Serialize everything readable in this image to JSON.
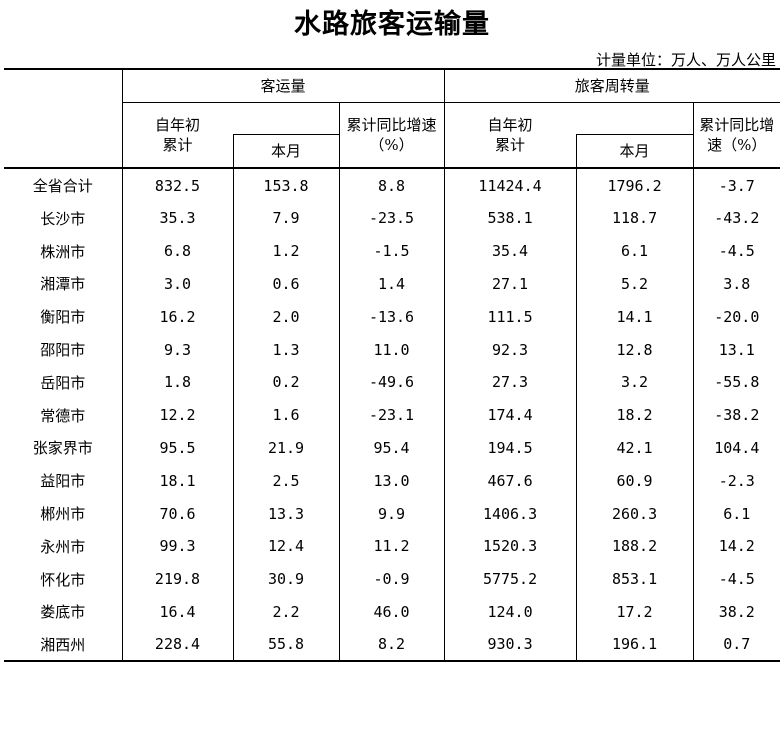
{
  "title": "水路旅客运输量",
  "unit": "计量单位：万人、万人公里",
  "headers": {
    "group_passenger": "客运量",
    "group_turnover": "旅客周转量",
    "ytd_line1": "自年初",
    "ytd_line2": "累计",
    "month": "本月",
    "growth_p_line1": "累计同比增速",
    "growth_p_line2": "（%）",
    "growth_t_line1": "累计同比增",
    "growth_t_line2": "速（%）"
  },
  "total": {
    "name": "全省合计",
    "values": [
      "832.5",
      "153.8",
      "8.8",
      "11424.4",
      "1796.2",
      "-3.7"
    ]
  },
  "rows": [
    {
      "name": "长沙市",
      "values": [
        "35.3",
        "7.9",
        "-23.5",
        "538.1",
        "118.7",
        "-43.2"
      ]
    },
    {
      "name": "株洲市",
      "values": [
        "6.8",
        "1.2",
        "-1.5",
        "35.4",
        "6.1",
        "-4.5"
      ]
    },
    {
      "name": "湘潭市",
      "values": [
        "3.0",
        "0.6",
        "1.4",
        "27.1",
        "5.2",
        "3.8"
      ]
    },
    {
      "name": "衡阳市",
      "values": [
        "16.2",
        "2.0",
        "-13.6",
        "111.5",
        "14.1",
        "-20.0"
      ]
    },
    {
      "name": "邵阳市",
      "values": [
        "9.3",
        "1.3",
        "11.0",
        "92.3",
        "12.8",
        "13.1"
      ]
    },
    {
      "name": "岳阳市",
      "values": [
        "1.8",
        "0.2",
        "-49.6",
        "27.3",
        "3.2",
        "-55.8"
      ]
    },
    {
      "name": "常德市",
      "values": [
        "12.2",
        "1.6",
        "-23.1",
        "174.4",
        "18.2",
        "-38.2"
      ]
    },
    {
      "name": "张家界市",
      "values": [
        "95.5",
        "21.9",
        "95.4",
        "194.5",
        "42.1",
        "104.4"
      ]
    },
    {
      "name": "益阳市",
      "values": [
        "18.1",
        "2.5",
        "13.0",
        "467.6",
        "60.9",
        "-2.3"
      ]
    },
    {
      "name": "郴州市",
      "values": [
        "70.6",
        "13.3",
        "9.9",
        "1406.3",
        "260.3",
        "6.1"
      ]
    },
    {
      "name": "永州市",
      "values": [
        "99.3",
        "12.4",
        "11.2",
        "1520.3",
        "188.2",
        "14.2"
      ]
    },
    {
      "name": "怀化市",
      "values": [
        "219.8",
        "30.9",
        "-0.9",
        "5775.2",
        "853.1",
        "-4.5"
      ]
    },
    {
      "name": "娄底市",
      "values": [
        "16.4",
        "2.2",
        "46.0",
        "124.0",
        "17.2",
        "38.2"
      ]
    },
    {
      "name": "湘西州",
      "values": [
        "228.4",
        "55.8",
        "8.2",
        "930.3",
        "196.1",
        "0.7"
      ]
    }
  ]
}
